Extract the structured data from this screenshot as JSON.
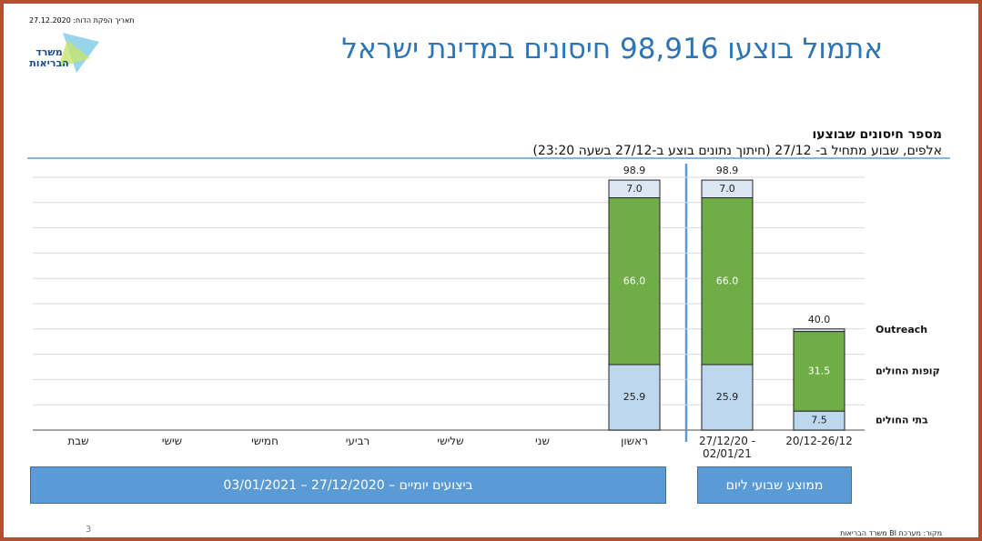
{
  "header": {
    "date": "תאריך הפקת הדוח: 27.12.2020",
    "logo": "משרד הבריאות",
    "title": "אתמול בוצעו 98,916 חיסונים במדינת ישראל"
  },
  "chart_data": {
    "type": "stacked-bar",
    "title": "מספר חיסונים שבוצעו",
    "subtitle": "אלפים, שבוע מתחיל ב- 27/12 (חיתוך נתונים בוצע ב-27/12 בשעה 23:20)",
    "categories": [
      "שבת",
      "שישי",
      "חמישי",
      "רביעי",
      "שלישי",
      "שני",
      "ראשון",
      "27/12/20 - 02/01/21",
      "20/12-26/12"
    ],
    "series": [
      {
        "name": "בתי החולים",
        "color": "#bdd7ee",
        "values": [
          null,
          null,
          null,
          null,
          null,
          null,
          25.9,
          25.9,
          7.5
        ],
        "value_labels": [
          null,
          null,
          null,
          null,
          null,
          null,
          "25.9",
          "25.9",
          "7.5"
        ]
      },
      {
        "name": "קופות החולים",
        "color": "#70ad47",
        "values": [
          null,
          null,
          null,
          null,
          null,
          null,
          66,
          66,
          31.5
        ],
        "value_labels": [
          null,
          null,
          null,
          null,
          null,
          null,
          "66.0",
          "66.0",
          "31.5"
        ]
      },
      {
        "name": "Outreach",
        "color": "#dce6f2",
        "values": [
          null,
          null,
          null,
          null,
          null,
          null,
          7,
          7,
          1
        ],
        "value_labels": [
          null,
          null,
          null,
          null,
          null,
          null,
          "7.0",
          "7.0",
          null
        ]
      }
    ],
    "totals": [
      null,
      null,
      null,
      null,
      null,
      null,
      98.9,
      98.9,
      40
    ],
    "total_labels": [
      null,
      null,
      null,
      null,
      null,
      null,
      "98.9",
      "98.9",
      "40.0"
    ],
    "ylim": [
      0,
      100
    ],
    "yticks": [
      10,
      20,
      30,
      40,
      50,
      60,
      70,
      80,
      90,
      100
    ],
    "grid": true
  },
  "footer": {
    "daily_box": "ביצועים יומיים – 27/12/2020 – 03/01/2021",
    "weekly_box": "ממוצע שבועי ליום",
    "page_number": "3",
    "source": "מקור: מערכת BI משרד הבריאות"
  }
}
